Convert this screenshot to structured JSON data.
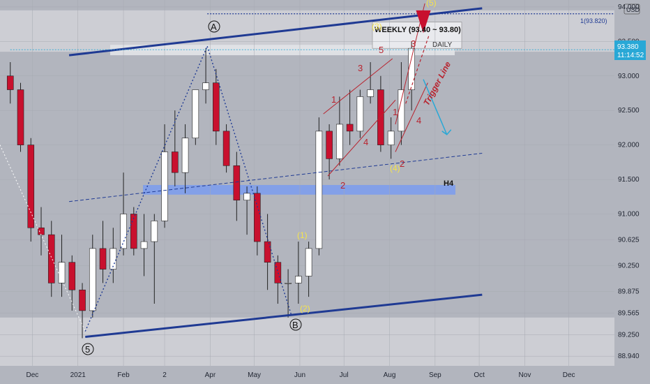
{
  "axis": {
    "currency": "USD",
    "y_ticks": [
      "94.000",
      "93.500",
      "93.000",
      "92.500",
      "92.000",
      "91.500",
      "91.000",
      "90.625",
      "90.250",
      "89.875",
      "89.565",
      "89.250",
      "88.940"
    ],
    "x_ticks": [
      "Dec",
      "2021",
      "Feb",
      "2",
      "Apr",
      "May",
      "Jun",
      "Jul",
      "Aug",
      "Sep",
      "Oct",
      "Nov",
      "Dec"
    ]
  },
  "price_tag": {
    "price": "93.380",
    "countdown": "11:14:52"
  },
  "resistance": {
    "label": "1(93.820)",
    "value": 93.82
  },
  "zones": {
    "weekly_label": "WEEKLY (93.40 ~ 93.80)",
    "daily_label": "DAILY",
    "h4_label": "H4"
  },
  "annotations": {
    "trigger_line": "Trigger Line",
    "wave_labels_red": [
      "1",
      "2",
      "3",
      "4",
      "5",
      "1",
      "2",
      "3",
      "4"
    ],
    "wave_labels_yellow": [
      "(1)",
      "(2)",
      "(3)",
      "(4)",
      "(5)"
    ],
    "circle_labels": [
      "A",
      "B",
      "5"
    ]
  },
  "colors": {
    "background": "#b2b5be",
    "up_candle": "#ffffff",
    "down_candle": "#c8102e",
    "trendline": "#1f3a93",
    "h4_zone": "#7a9cf0",
    "forecast_arrow": "#29a8d6"
  },
  "chart_data": {
    "type": "candlestick",
    "title": "",
    "xlabel": "",
    "ylabel": "USD",
    "ylim": [
      88.8,
      94.1
    ],
    "x_range": [
      "2020-11-09",
      "2022-01-01"
    ],
    "ohlc": [
      {
        "date": "2020-11-16",
        "open": 93.0,
        "high": 93.2,
        "low": 92.6,
        "close": 92.8
      },
      {
        "date": "2020-11-23",
        "open": 92.8,
        "high": 92.9,
        "low": 91.9,
        "close": 92.0
      },
      {
        "date": "2020-11-30",
        "open": 92.0,
        "high": 92.1,
        "low": 90.6,
        "close": 90.8
      },
      {
        "date": "2020-12-07",
        "open": 90.8,
        "high": 91.1,
        "low": 90.4,
        "close": 90.7
      },
      {
        "date": "2020-12-14",
        "open": 90.7,
        "high": 90.9,
        "low": 89.8,
        "close": 90.0
      },
      {
        "date": "2020-12-21",
        "open": 90.0,
        "high": 90.7,
        "low": 89.8,
        "close": 90.3
      },
      {
        "date": "2020-12-28",
        "open": 90.3,
        "high": 90.4,
        "low": 89.6,
        "close": 89.9
      },
      {
        "date": "2021-01-04",
        "open": 89.9,
        "high": 90.0,
        "low": 89.2,
        "close": 89.6
      },
      {
        "date": "2021-01-11",
        "open": 89.6,
        "high": 90.7,
        "low": 89.5,
        "close": 90.5
      },
      {
        "date": "2021-01-18",
        "open": 90.5,
        "high": 90.9,
        "low": 90.0,
        "close": 90.2
      },
      {
        "date": "2021-01-25",
        "open": 90.2,
        "high": 90.8,
        "low": 90.0,
        "close": 90.5
      },
      {
        "date": "2021-02-01",
        "open": 90.5,
        "high": 91.6,
        "low": 90.4,
        "close": 91.0
      },
      {
        "date": "2021-02-08",
        "open": 91.0,
        "high": 91.1,
        "low": 90.4,
        "close": 90.5
      },
      {
        "date": "2021-02-15",
        "open": 90.5,
        "high": 91.0,
        "low": 90.1,
        "close": 90.6
      },
      {
        "date": "2021-02-22",
        "open": 90.6,
        "high": 91.0,
        "low": 89.7,
        "close": 90.9
      },
      {
        "date": "2021-03-01",
        "open": 90.9,
        "high": 92.3,
        "low": 90.8,
        "close": 91.9
      },
      {
        "date": "2021-03-08",
        "open": 91.9,
        "high": 92.5,
        "low": 91.4,
        "close": 91.6
      },
      {
        "date": "2021-03-15",
        "open": 91.6,
        "high": 92.3,
        "low": 91.3,
        "close": 92.1
      },
      {
        "date": "2021-03-22",
        "open": 92.1,
        "high": 92.8,
        "low": 92.0,
        "close": 92.8
      },
      {
        "date": "2021-03-29",
        "open": 92.8,
        "high": 93.4,
        "low": 92.6,
        "close": 92.9
      },
      {
        "date": "2021-04-05",
        "open": 92.9,
        "high": 93.1,
        "low": 92.0,
        "close": 92.2
      },
      {
        "date": "2021-04-12",
        "open": 92.2,
        "high": 92.3,
        "low": 91.6,
        "close": 91.7
      },
      {
        "date": "2021-04-19",
        "open": 91.7,
        "high": 91.9,
        "low": 90.9,
        "close": 91.2
      },
      {
        "date": "2021-04-26",
        "open": 91.2,
        "high": 91.4,
        "low": 90.7,
        "close": 91.3
      },
      {
        "date": "2021-05-03",
        "open": 91.3,
        "high": 91.4,
        "low": 90.4,
        "close": 90.6
      },
      {
        "date": "2021-05-10",
        "open": 90.6,
        "high": 91.0,
        "low": 89.9,
        "close": 90.3
      },
      {
        "date": "2021-05-17",
        "open": 90.3,
        "high": 90.4,
        "low": 89.7,
        "close": 90.0
      },
      {
        "date": "2021-05-24",
        "open": 90.0,
        "high": 90.2,
        "low": 89.5,
        "close": 90.0
      },
      {
        "date": "2021-05-31",
        "open": 90.0,
        "high": 90.6,
        "low": 89.7,
        "close": 90.1
      },
      {
        "date": "2021-06-07",
        "open": 90.1,
        "high": 90.6,
        "low": 89.8,
        "close": 90.5
      },
      {
        "date": "2021-06-14",
        "open": 90.5,
        "high": 92.4,
        "low": 90.4,
        "close": 92.2
      },
      {
        "date": "2021-06-21",
        "open": 92.2,
        "high": 92.3,
        "low": 91.5,
        "close": 91.8
      },
      {
        "date": "2021-06-28",
        "open": 91.8,
        "high": 92.7,
        "low": 91.7,
        "close": 92.3
      },
      {
        "date": "2021-07-05",
        "open": 92.3,
        "high": 92.8,
        "low": 92.0,
        "close": 92.2
      },
      {
        "date": "2021-07-12",
        "open": 92.2,
        "high": 92.8,
        "low": 92.1,
        "close": 92.7
      },
      {
        "date": "2021-07-19",
        "open": 92.7,
        "high": 93.2,
        "low": 92.6,
        "close": 92.8
      },
      {
        "date": "2021-07-26",
        "open": 92.8,
        "high": 93.0,
        "low": 91.9,
        "close": 92.0
      },
      {
        "date": "2021-08-02",
        "open": 92.0,
        "high": 92.4,
        "low": 91.8,
        "close": 92.2
      },
      {
        "date": "2021-08-09",
        "open": 92.2,
        "high": 93.2,
        "low": 92.0,
        "close": 92.8
      },
      {
        "date": "2021-08-16",
        "open": 92.8,
        "high": 93.5,
        "low": 92.5,
        "close": 93.4
      }
    ]
  }
}
